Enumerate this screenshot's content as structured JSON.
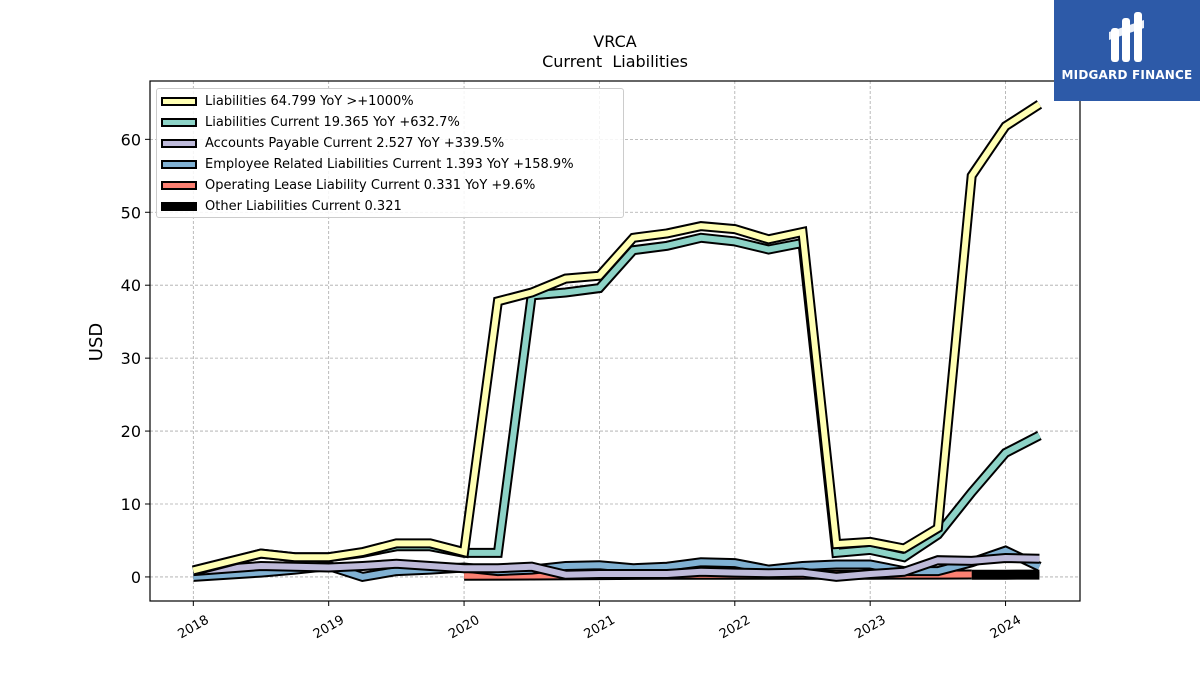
{
  "chart_data": {
    "type": "line",
    "title": "VRCA",
    "subtitle": "Current  Liabilities",
    "ylabel": "USD",
    "xlabel": "",
    "ylim": [
      -3.3,
      68
    ],
    "xlim": [
      2017.68,
      2024.55
    ],
    "yticks": [
      0,
      10,
      20,
      30,
      40,
      50,
      60
    ],
    "xticks": [
      2018,
      2019,
      2020,
      2021,
      2022,
      2023,
      2024
    ],
    "grid": true,
    "legend_position": "upper-left",
    "series": [
      {
        "name": "Liabilities",
        "legend": "Liabilities  64.799 YoY >+1000%",
        "color": "#ffffb3",
        "points": [
          [
            2018.0,
            0.9
          ],
          [
            2018.5,
            3.2
          ],
          [
            2018.75,
            2.7
          ],
          [
            2019.0,
            2.7
          ],
          [
            2019.25,
            3.4
          ],
          [
            2019.5,
            4.6
          ],
          [
            2019.75,
            4.6
          ],
          [
            2020.0,
            3.4
          ],
          [
            2020.25,
            37.8
          ],
          [
            2020.5,
            39.0
          ],
          [
            2020.75,
            40.9
          ],
          [
            2021.0,
            41.3
          ],
          [
            2021.25,
            46.5
          ],
          [
            2021.5,
            47.1
          ],
          [
            2021.75,
            48.1
          ],
          [
            2022.0,
            47.7
          ],
          [
            2022.25,
            46.3
          ],
          [
            2022.5,
            47.3
          ],
          [
            2022.75,
            4.5
          ],
          [
            2023.0,
            4.8
          ],
          [
            2023.25,
            3.9
          ],
          [
            2023.5,
            6.7
          ],
          [
            2023.75,
            55.0
          ],
          [
            2024.0,
            61.8
          ],
          [
            2024.25,
            64.8
          ]
        ]
      },
      {
        "name": "Liabilities Current",
        "legend": "Liabilities Current  19.365 YoY +632.7%",
        "color": "#8dd3c7",
        "points": [
          [
            2018.0,
            0.8
          ],
          [
            2018.5,
            3.2
          ],
          [
            2018.75,
            2.7
          ],
          [
            2019.0,
            2.7
          ],
          [
            2019.25,
            3.3
          ],
          [
            2019.5,
            4.2
          ],
          [
            2019.75,
            4.2
          ],
          [
            2020.0,
            3.3
          ],
          [
            2020.25,
            3.3
          ],
          [
            2020.5,
            38.6
          ],
          [
            2020.75,
            39.0
          ],
          [
            2021.0,
            39.6
          ],
          [
            2021.25,
            44.8
          ],
          [
            2021.5,
            45.4
          ],
          [
            2021.75,
            46.5
          ],
          [
            2022.0,
            46.0
          ],
          [
            2022.25,
            44.9
          ],
          [
            2022.5,
            45.8
          ],
          [
            2022.75,
            3.3
          ],
          [
            2023.0,
            3.7
          ],
          [
            2023.25,
            2.7
          ],
          [
            2023.5,
            5.8
          ],
          [
            2023.75,
            11.6
          ],
          [
            2024.0,
            17.0
          ],
          [
            2024.25,
            19.4
          ]
        ]
      },
      {
        "name": "Accounts Payable Current",
        "legend": "Accounts Payable Current  2.527 YoY +339.5%",
        "color": "#bebada",
        "points": [
          [
            2018.0,
            0.8
          ],
          [
            2018.5,
            1.5
          ],
          [
            2018.75,
            1.4
          ],
          [
            2019.0,
            1.3
          ],
          [
            2019.25,
            1.5
          ],
          [
            2019.5,
            1.8
          ],
          [
            2019.75,
            1.5
          ],
          [
            2020.0,
            1.2
          ],
          [
            2020.25,
            1.2
          ],
          [
            2020.5,
            1.4
          ],
          [
            2020.75,
            0.3
          ],
          [
            2021.0,
            0.4
          ],
          [
            2021.25,
            0.4
          ],
          [
            2021.5,
            0.4
          ],
          [
            2021.75,
            0.7
          ],
          [
            2022.0,
            0.6
          ],
          [
            2022.25,
            0.5
          ],
          [
            2022.5,
            0.6
          ],
          [
            2022.75,
            0.0
          ],
          [
            2023.0,
            0.4
          ],
          [
            2023.25,
            0.7
          ],
          [
            2023.5,
            2.3
          ],
          [
            2023.75,
            2.2
          ],
          [
            2024.0,
            2.6
          ],
          [
            2024.25,
            2.5
          ]
        ]
      },
      {
        "name": "Employee Related Liabilities Current",
        "legend": "Employee Related Liabilities Current  1.393 YoY +158.9%",
        "color": "#80b1d3",
        "points": [
          [
            2018.0,
            0.0
          ],
          [
            2018.5,
            0.6
          ],
          [
            2018.75,
            1.0
          ],
          [
            2019.0,
            1.5
          ],
          [
            2019.25,
            0.0
          ],
          [
            2019.5,
            0.8
          ],
          [
            2019.75,
            1.0
          ],
          [
            2020.0,
            1.3
          ],
          [
            2020.25,
            0.8
          ],
          [
            2020.5,
            1.0
          ],
          [
            2020.75,
            1.5
          ],
          [
            2021.0,
            1.6
          ],
          [
            2021.25,
            1.2
          ],
          [
            2021.5,
            1.4
          ],
          [
            2021.75,
            2.0
          ],
          [
            2022.0,
            1.9
          ],
          [
            2022.25,
            1.0
          ],
          [
            2022.5,
            1.5
          ],
          [
            2022.75,
            1.7
          ],
          [
            2023.0,
            1.7
          ],
          [
            2023.25,
            0.8
          ],
          [
            2023.5,
            0.8
          ],
          [
            2023.75,
            2.0
          ],
          [
            2024.0,
            3.6
          ],
          [
            2024.25,
            1.4
          ]
        ]
      },
      {
        "name": "Operating Lease Liability Current",
        "legend": "Operating Lease Liability Current  0.331 YoY +9.6%",
        "color": "#fb8072",
        "points": [
          [
            2020.0,
            0.15
          ],
          [
            2020.5,
            0.2
          ],
          [
            2021.0,
            0.25
          ],
          [
            2021.5,
            0.3
          ],
          [
            2022.0,
            0.3
          ],
          [
            2022.5,
            0.3
          ],
          [
            2023.0,
            0.3
          ],
          [
            2023.5,
            0.32
          ],
          [
            2023.75,
            0.33
          ]
        ]
      },
      {
        "name": "Other Liabilities Current",
        "legend": "Other Liabilities Current  0.321",
        "color": "#000000",
        "points": [
          [
            2023.75,
            0.3
          ],
          [
            2024.0,
            0.3
          ],
          [
            2024.25,
            0.32
          ]
        ]
      }
    ]
  },
  "logo": {
    "text": "MIDGARD FINANCE",
    "bg_color": "#2d5aa8",
    "icon": "midgard-logo-icon"
  }
}
